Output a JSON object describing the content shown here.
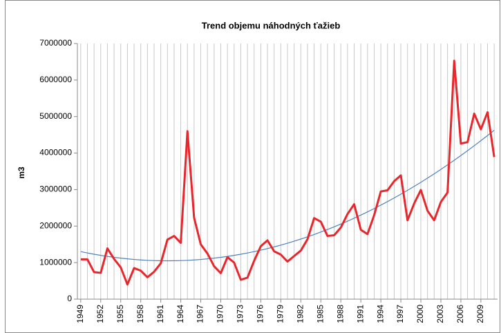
{
  "chart_data": {
    "type": "line",
    "title": "Trend objemu náhodných ťažieb",
    "y_label": "m3",
    "categories": [
      "1949",
      null,
      null,
      "1952",
      null,
      null,
      "1955",
      null,
      null,
      "1958",
      null,
      null,
      "1961",
      null,
      null,
      "1964",
      null,
      null,
      "1967",
      null,
      null,
      "1970",
      null,
      null,
      "1973",
      null,
      null,
      "1976",
      null,
      null,
      "1979",
      null,
      null,
      "1982",
      null,
      null,
      "1985",
      null,
      null,
      "1988",
      null,
      null,
      "1991",
      null,
      null,
      "1994",
      null,
      null,
      "1997",
      null,
      null,
      "2000",
      null,
      null,
      "2003",
      null,
      null,
      "2006",
      null,
      null,
      "2009",
      null,
      null
    ],
    "series": [
      {
        "color": "#e8262c",
        "width": 3,
        "values": [
          1090000,
          1090000,
          740000,
          720000,
          1390000,
          1100000,
          870000,
          400000,
          850000,
          780000,
          600000,
          750000,
          980000,
          1630000,
          1730000,
          1540000,
          4600000,
          2230000,
          1500000,
          1250000,
          900000,
          710000,
          1150000,
          1000000,
          530000,
          590000,
          1050000,
          1450000,
          1610000,
          1310000,
          1220000,
          1030000,
          1180000,
          1330000,
          1640000,
          2220000,
          2120000,
          1730000,
          1750000,
          1960000,
          2330000,
          2600000,
          1900000,
          1780000,
          2300000,
          2950000,
          2980000,
          3230000,
          3390000,
          2160000,
          2620000,
          2990000,
          2420000,
          2160000,
          2660000,
          2920000,
          6530000,
          4260000,
          4300000,
          5080000,
          4650000,
          5120000,
          3890000
        ]
      },
      {
        "color": "#4f81bd",
        "width": 1.2,
        "values": [
          1302000,
          1264000,
          1230000,
          1199000,
          1171000,
          1145000,
          1123000,
          1104000,
          1087000,
          1074000,
          1063000,
          1056000,
          1052000,
          1050000,
          1052000,
          1056000,
          1063000,
          1074000,
          1087000,
          1104000,
          1123000,
          1145000,
          1171000,
          1199000,
          1230000,
          1264000,
          1302000,
          1342000,
          1385000,
          1431000,
          1480000,
          1532000,
          1588000,
          1646000,
          1707000,
          1771000,
          1838000,
          1908000,
          1981000,
          2057000,
          2135000,
          2217000,
          2302000,
          2390000,
          2481000,
          2575000,
          2671000,
          2771000,
          2874000,
          2980000,
          3088000,
          3200000,
          3315000,
          3432000,
          3553000,
          3677000,
          3803000,
          3933000,
          4065000,
          4201000,
          4339000,
          4481000,
          4625000
        ]
      }
    ],
    "ylim": [
      0,
      7000000
    ],
    "yticks": [
      0,
      1000000,
      2000000,
      3000000,
      4000000,
      5000000,
      6000000,
      7000000
    ],
    "xgrid": true
  }
}
